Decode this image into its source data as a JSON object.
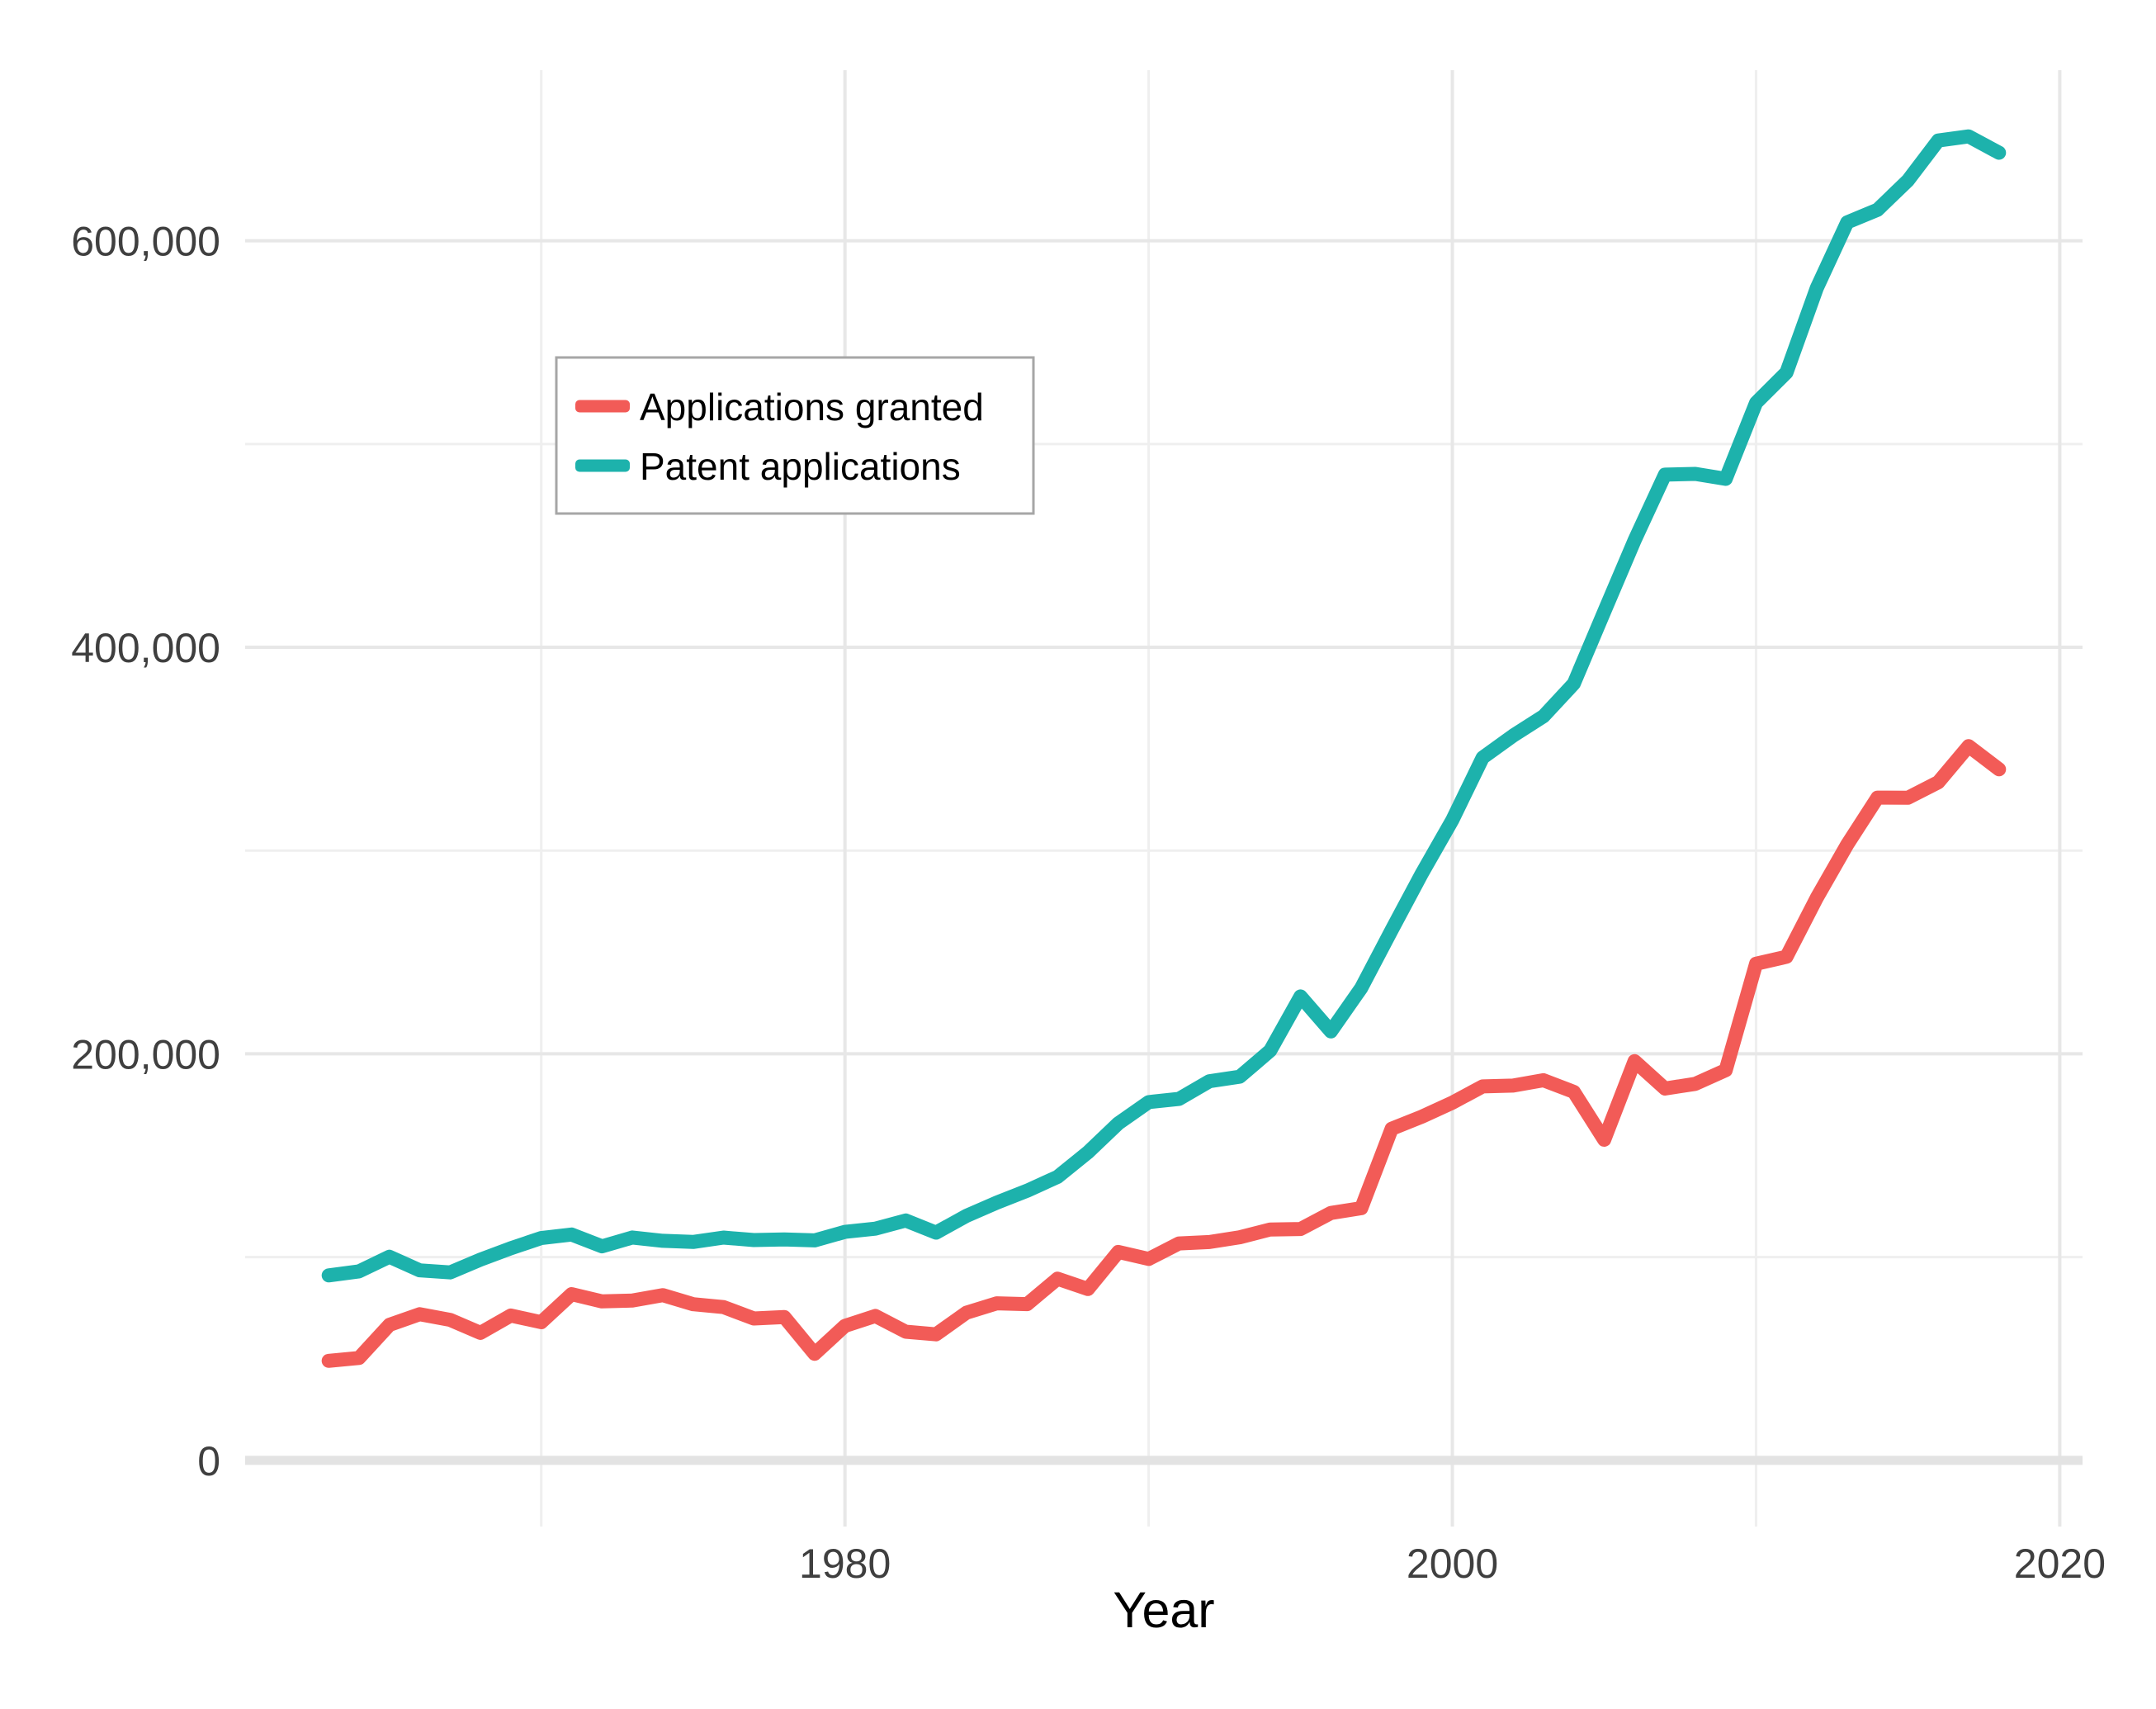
{
  "page": {
    "background": "#FFFFFF"
  },
  "chart_data": {
    "type": "line",
    "title": "",
    "xlabel": "Year",
    "ylabel": "",
    "x": [
      1963,
      1964,
      1965,
      1966,
      1967,
      1968,
      1969,
      1970,
      1971,
      1972,
      1973,
      1974,
      1975,
      1976,
      1977,
      1978,
      1979,
      1980,
      1981,
      1982,
      1983,
      1984,
      1985,
      1986,
      1987,
      1988,
      1989,
      1990,
      1991,
      1992,
      1993,
      1994,
      1995,
      1996,
      1997,
      1998,
      1999,
      2000,
      2001,
      2002,
      2003,
      2004,
      2005,
      2006,
      2007,
      2008,
      2009,
      2010,
      2011,
      2012,
      2013,
      2014,
      2015,
      2016,
      2017,
      2018
    ],
    "series": [
      {
        "name": "Applications granted",
        "color": "#F25B57",
        "values": [
          48971,
          50389,
          66647,
          71886,
          69098,
          62714,
          71230,
          67964,
          81790,
          78185,
          78622,
          81278,
          76810,
          75388,
          69781,
          70514,
          52413,
          66170,
          71064,
          63276,
          61982,
          72650,
          77245,
          76862,
          89385,
          84272,
          102533,
          99077,
          106696,
          107394,
          109746,
          113587,
          113834,
          121696,
          124069,
          163142,
          169085,
          175979,
          183970,
          184375,
          187012,
          181299,
          157718,
          196405,
          182899,
          185224,
          191927,
          244341,
          247713,
          276788,
          302948,
          326032,
          325979,
          333583,
          351403,
          339992
        ]
      },
      {
        "name": "Patent applications",
        "color": "#1DB2AC",
        "values": [
          90982,
          92971,
          100150,
          93486,
          92465,
          98737,
          104357,
          109359,
          111095,
          105300,
          109622,
          108011,
          107456,
          109580,
          108377,
          108648,
          108209,
          112379,
          113966,
          117987,
          112040,
          120276,
          126788,
          132665,
          139455,
          151491,
          165748,
          176264,
          177830,
          186507,
          188739,
          201554,
          228238,
          211013,
          232424,
          260889,
          288811,
          315015,
          345732,
          356493,
          366043,
          382139,
          417508,
          452633,
          484955,
          485312,
          482871,
          520277,
          535188,
          576763,
          609052,
          615243,
          629647,
          649319,
          651355,
          643303
        ]
      }
    ],
    "xlim": [
      1960.25,
      2020.75
    ],
    "ylim": [
      -32568,
      683923
    ],
    "x_ticks": {
      "values": [
        1980,
        2000,
        2020
      ],
      "labels": [
        "1980",
        "2000",
        "2020"
      ],
      "minor": [
        1970,
        1990,
        2010
      ]
    },
    "y_ticks": {
      "values": [
        0,
        200000,
        400000,
        600000
      ],
      "labels": [
        "0",
        "200,000",
        "400,000",
        "600,000"
      ],
      "minor": [
        100000,
        300000,
        500000
      ]
    },
    "baseline_value": 0,
    "grid": true,
    "legend_position": "inside-top-left"
  },
  "legend": {
    "items": [
      {
        "label": "Applications granted",
        "color": "#F25B57"
      },
      {
        "label": "Patent applications",
        "color": "#1DB2AC"
      }
    ]
  },
  "style": {
    "grid_major": "#E7E7E7",
    "grid_minor": "#EFEFEF",
    "baseline_color": "#E3E3E3",
    "tick_text": "#3F3F3F",
    "axis_title_text": "#000000",
    "legend_border": "#A6A6A6",
    "legend_bg": "#FFFFFF",
    "legend_text": "#000000"
  }
}
